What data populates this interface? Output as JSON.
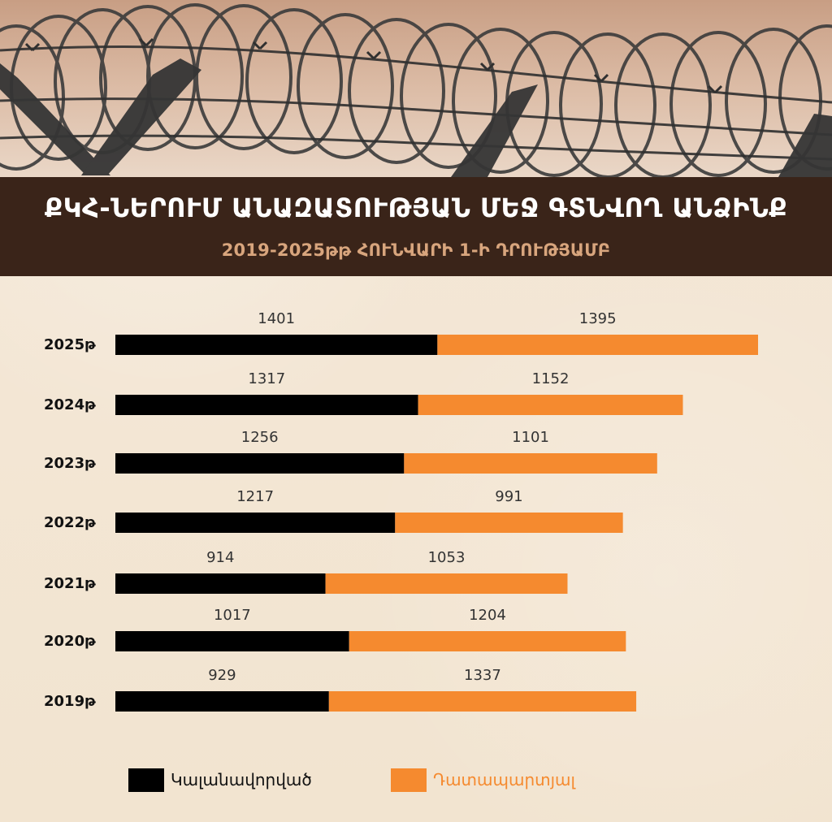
{
  "header": {
    "title": "ՔԿՀ-ՆԵՐՈՒՄ ԱՆԱԶԱՏՈՒԹՅԱՆ ՄԵՋ ԳՏՆՎՈՂ ԱՆՁԻՆՔ",
    "subtitle": "2019-2025թթ  ՀՈՒՆՎԱՐԻ 1-Ի ԴՐՈՒԹՅԱՄԲ"
  },
  "legend": {
    "items": [
      {
        "label": "Կալանավորված",
        "color": "#000000"
      },
      {
        "label": "Դատապարտյալ",
        "color": "#f58a2f"
      }
    ]
  },
  "chart_data": {
    "type": "bar",
    "orientation": "horizontal",
    "stacked": true,
    "categories": [
      "2025թ",
      "2024թ",
      "2023թ",
      "2022թ",
      "2021թ",
      "2020թ",
      "2019թ"
    ],
    "series": [
      {
        "name": "Կալանավորված",
        "values": [
          1401,
          1317,
          1256,
          1217,
          914,
          1017,
          929
        ],
        "color": "#000000"
      },
      {
        "name": "Դատապարտյալ",
        "values": [
          1395,
          1152,
          1101,
          991,
          1053,
          1204,
          1337
        ],
        "color": "#f58a2f"
      }
    ],
    "xlim": [
      0,
      2796
    ],
    "grid": false,
    "legend_position": "bottom"
  }
}
